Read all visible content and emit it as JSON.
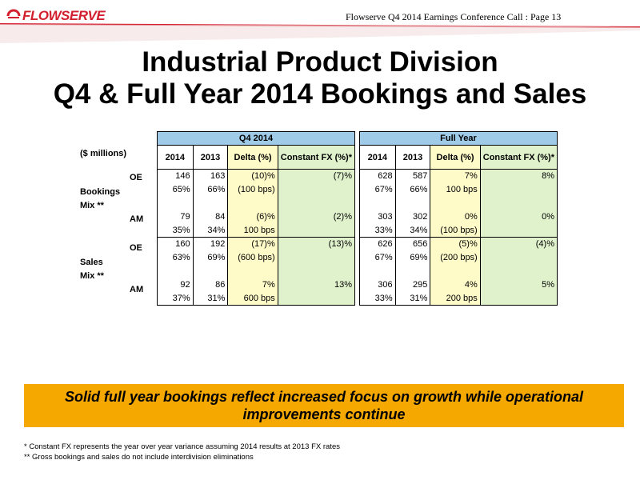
{
  "logo": {
    "text": "FLOWSERVE",
    "colors": {
      "brand": "#d3202e"
    }
  },
  "header": {
    "text": "Flowserve Q4 2014 Earnings Conference Call  : Page 13"
  },
  "title": {
    "line1": "Industrial Product Division",
    "line2": "Q4 & Full Year 2014 Bookings and Sales"
  },
  "table": {
    "units_label": "($ millions)",
    "group_q4": "Q4 2014",
    "group_fy": "Full Year",
    "columns": [
      "2014",
      "2013",
      "Delta (%)",
      "Constant FX (%)*"
    ],
    "row_labels": {
      "oe": "OE",
      "am": "AM",
      "bookings": "Bookings",
      "sales": "Sales",
      "mix": "Mix **"
    },
    "rows": [
      {
        "q4": [
          "146",
          "163",
          "(10)%",
          "(7)%"
        ],
        "fy": [
          "628",
          "587",
          "7%",
          "8%"
        ]
      },
      {
        "q4": [
          "65%",
          "66%",
          "(100 bps)",
          ""
        ],
        "fy": [
          "67%",
          "66%",
          "100 bps",
          ""
        ]
      },
      {
        "q4": [
          "",
          "",
          "",
          ""
        ],
        "fy": [
          "",
          "",
          "",
          ""
        ]
      },
      {
        "q4": [
          "79",
          "84",
          "(6)%",
          "(2)%"
        ],
        "fy": [
          "303",
          "302",
          "0%",
          "0%"
        ]
      },
      {
        "q4": [
          "35%",
          "34%",
          "100 bps",
          ""
        ],
        "fy": [
          "33%",
          "34%",
          "(100 bps)",
          ""
        ]
      },
      {
        "q4": [
          "160",
          "192",
          "(17)%",
          "(13)%"
        ],
        "fy": [
          "626",
          "656",
          "(5)%",
          "(4)%"
        ]
      },
      {
        "q4": [
          "63%",
          "69%",
          "(600 bps)",
          ""
        ],
        "fy": [
          "67%",
          "69%",
          "(200 bps)",
          ""
        ]
      },
      {
        "q4": [
          "",
          "",
          "",
          ""
        ],
        "fy": [
          "",
          "",
          "",
          ""
        ]
      },
      {
        "q4": [
          "92",
          "86",
          "7%",
          "13%"
        ],
        "fy": [
          "306",
          "295",
          "4%",
          "5%"
        ]
      },
      {
        "q4": [
          "37%",
          "31%",
          "600 bps",
          ""
        ],
        "fy": [
          "33%",
          "31%",
          "200 bps",
          ""
        ]
      }
    ],
    "colors": {
      "header": "#9fcbe8",
      "delta": "#fffbc8",
      "constant_fx": "#dff2cc"
    }
  },
  "banner": {
    "text": "Solid full year bookings reflect increased focus on growth while operational improvements continue",
    "color": "#f5a800"
  },
  "footnotes": {
    "fn1": "* Constant FX represents the year over year variance assuming 2014 results at 2013 FX rates",
    "fn2": "**  Gross bookings and sales do not include interdivision eliminations"
  }
}
